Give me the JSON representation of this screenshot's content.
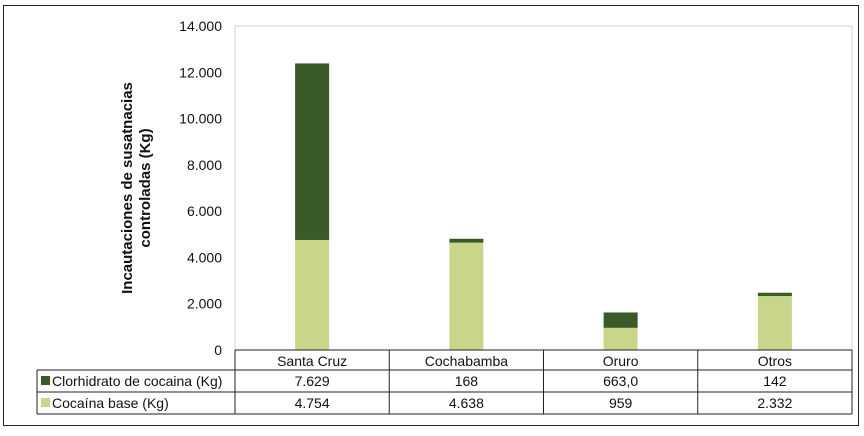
{
  "chart_data": {
    "type": "bar",
    "stacked": true,
    "title": "",
    "ylabel_lines": [
      "Incautaciones de susatnacias",
      "controladas (Kg)"
    ],
    "xlabel": "",
    "ylim": [
      0,
      14000
    ],
    "yticks": [
      0,
      2000,
      4000,
      6000,
      8000,
      10000,
      12000,
      14000
    ],
    "ytick_labels": [
      "0",
      "2.000",
      "4.000",
      "6.000",
      "8.000",
      "10.000",
      "12.000",
      "14.000"
    ],
    "grid": false,
    "categories": [
      "Santa Cruz",
      "Cochabamba",
      "Oruro",
      "Otros"
    ],
    "series": [
      {
        "name": "Cocaína base (Kg)",
        "values": [
          4754,
          4638,
          959,
          2332
        ],
        "labels": [
          "4.754",
          "4.638",
          "959",
          "2.332"
        ],
        "color": "#c8d68a"
      },
      {
        "name": "Clorhidrato de cocaina  (Kg)",
        "values": [
          7629,
          168,
          663,
          142
        ],
        "labels": [
          "7.629",
          "168",
          "663,0",
          "142"
        ],
        "color": "#3a5a28"
      }
    ],
    "legend": "data-table"
  }
}
